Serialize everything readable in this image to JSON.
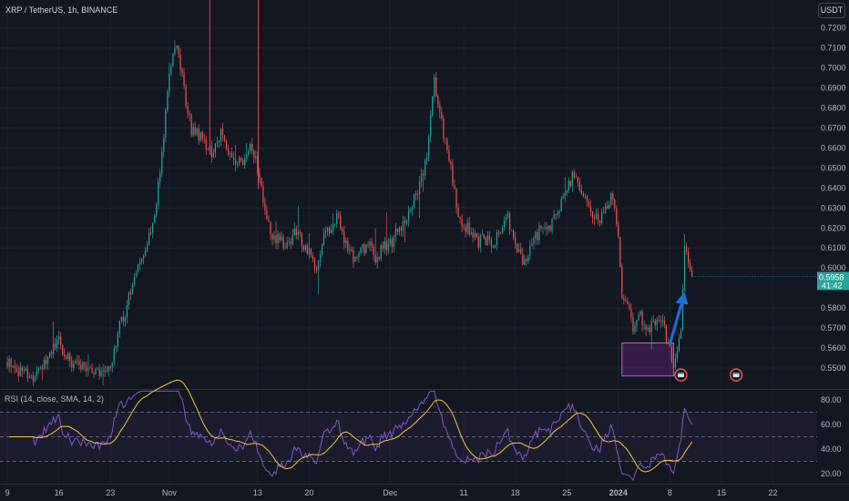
{
  "header": {
    "symbol_title": "XRP / TetherUS, 1h, BINANCE",
    "currency_button": "USDT"
  },
  "current_price": {
    "value": "0.5958",
    "countdown": "41:42",
    "level": 0.5958,
    "color": "#26a69a"
  },
  "rsi_panel": {
    "label": "RSI (14, close, SMA, 14, 2)",
    "upper_band": 70,
    "lower_band": 30,
    "middle": 50,
    "ticks": [
      "80.00",
      "60.00",
      "40.00",
      "20.00"
    ],
    "tick_values": [
      80,
      60,
      40,
      20
    ],
    "ylim": [
      12,
      88
    ],
    "rsi_color": "#7e57c2",
    "ma_color": "#f5c242"
  },
  "chart_data": [
    {
      "type": "candlestick",
      "title": "XRP / TetherUS, 1h, BINANCE",
      "ylabel": "USDT",
      "ylim": [
        0.5395,
        0.734
      ],
      "grid": true,
      "y_ticks": [
        "0.7200",
        "0.7100",
        "0.7000",
        "0.6900",
        "0.6800",
        "0.6700",
        "0.6600",
        "0.6500",
        "0.6400",
        "0.6300",
        "0.6200",
        "0.6100",
        "0.6000",
        "0.5800",
        "0.5700",
        "0.5600",
        "0.5500"
      ],
      "y_tick_values": [
        0.72,
        0.71,
        0.7,
        0.69,
        0.68,
        0.67,
        0.66,
        0.65,
        0.64,
        0.63,
        0.62,
        0.61,
        0.6,
        0.58,
        0.57,
        0.56,
        0.55
      ],
      "x_ticks": [
        "9",
        "16",
        "23",
        "Nov",
        "13",
        "20",
        "Dec",
        "11",
        "18",
        "25",
        "2024",
        "8",
        "15",
        "22"
      ],
      "x_tick_bold": [
        false,
        false,
        false,
        false,
        false,
        false,
        false,
        false,
        false,
        false,
        true,
        false,
        false,
        false
      ],
      "x_tick_days": [
        0,
        7,
        14,
        22,
        34,
        41,
        52,
        62,
        69,
        76,
        83,
        90,
        97,
        104
      ],
      "x_range_days": [
        -1,
        110
      ],
      "up_color": "#26a69a",
      "down_color": "#ef5350",
      "price_path": [
        [
          0,
          0.553
        ],
        [
          1,
          0.552
        ],
        [
          1.5,
          0.547
        ],
        [
          2.5,
          0.549
        ],
        [
          3.5,
          0.545
        ],
        [
          4.5,
          0.55
        ],
        [
          6,
          0.56
        ],
        [
          7,
          0.563
        ],
        [
          8,
          0.557
        ],
        [
          9,
          0.552
        ],
        [
          10,
          0.551
        ],
        [
          11,
          0.548
        ],
        [
          12,
          0.547
        ],
        [
          13,
          0.548
        ],
        [
          14,
          0.55
        ],
        [
          15,
          0.568
        ],
        [
          16,
          0.578
        ],
        [
          17,
          0.593
        ],
        [
          18,
          0.604
        ],
        [
          19,
          0.613
        ],
        [
          20,
          0.625
        ],
        [
          21,
          0.655
        ],
        [
          22,
          0.7
        ],
        [
          23,
          0.714
        ],
        [
          24,
          0.688
        ],
        [
          25,
          0.669
        ],
        [
          26,
          0.667
        ],
        [
          27,
          0.66
        ],
        [
          28,
          0.657
        ],
        [
          29,
          0.667
        ],
        [
          30,
          0.658
        ],
        [
          31,
          0.651
        ],
        [
          32,
          0.654
        ],
        [
          33,
          0.664
        ],
        [
          34,
          0.65
        ],
        [
          35,
          0.631
        ],
        [
          36,
          0.613
        ],
        [
          37,
          0.616
        ],
        [
          38,
          0.61
        ],
        [
          39,
          0.62
        ],
        [
          40,
          0.613
        ],
        [
          41,
          0.609
        ],
        [
          42,
          0.6
        ],
        [
          43,
          0.618
        ],
        [
          44,
          0.621
        ],
        [
          45,
          0.625
        ],
        [
          46,
          0.612
        ],
        [
          47,
          0.605
        ],
        [
          48,
          0.608
        ],
        [
          49,
          0.612
        ],
        [
          50,
          0.605
        ],
        [
          51,
          0.61
        ],
        [
          52,
          0.612
        ],
        [
          53,
          0.618
        ],
        [
          54,
          0.625
        ],
        [
          55,
          0.633
        ],
        [
          56,
          0.642
        ],
        [
          57,
          0.655
        ],
        [
          58,
          0.693
        ],
        [
          59,
          0.672
        ],
        [
          60,
          0.655
        ],
        [
          61,
          0.63
        ],
        [
          62,
          0.622
        ],
        [
          63,
          0.618
        ],
        [
          64,
          0.613
        ],
        [
          65,
          0.614
        ],
        [
          66,
          0.613
        ],
        [
          67,
          0.62
        ],
        [
          68,
          0.625
        ],
        [
          69,
          0.61
        ],
        [
          70,
          0.603
        ],
        [
          71,
          0.61
        ],
        [
          72,
          0.617
        ],
        [
          73,
          0.621
        ],
        [
          74,
          0.622
        ],
        [
          75,
          0.63
        ],
        [
          76,
          0.639
        ],
        [
          77,
          0.647
        ],
        [
          78,
          0.637
        ],
        [
          79,
          0.629
        ],
        [
          80,
          0.624
        ],
        [
          81,
          0.627
        ],
        [
          82,
          0.636
        ],
        [
          82.5,
          0.63
        ],
        [
          83,
          0.615
        ],
        [
          83.5,
          0.585
        ],
        [
          84,
          0.583
        ],
        [
          85,
          0.57
        ],
        [
          86,
          0.576
        ],
        [
          87,
          0.569
        ],
        [
          88,
          0.573
        ],
        [
          89,
          0.572
        ],
        [
          90,
          0.558
        ],
        [
          90.5,
          0.55
        ],
        [
          91.5,
          0.568
        ],
        [
          92,
          0.612
        ],
        [
          92.5,
          0.605
        ],
        [
          93,
          0.596
        ]
      ],
      "annotations": {
        "box": {
          "x0": 83.5,
          "x1": 90.5,
          "y0": 0.546,
          "y1": 0.5625,
          "fill": "#8e24aa",
          "border": "#ba68c8"
        },
        "arrow": {
          "x0": 90,
          "y0": 0.562,
          "x1": 92,
          "y1": 0.588,
          "color": "#1e6fd9"
        },
        "earnings_icons": [
          {
            "x": 91.5,
            "y": 0.5465
          },
          {
            "x": 99,
            "y": 0.5465
          }
        ]
      }
    }
  ]
}
